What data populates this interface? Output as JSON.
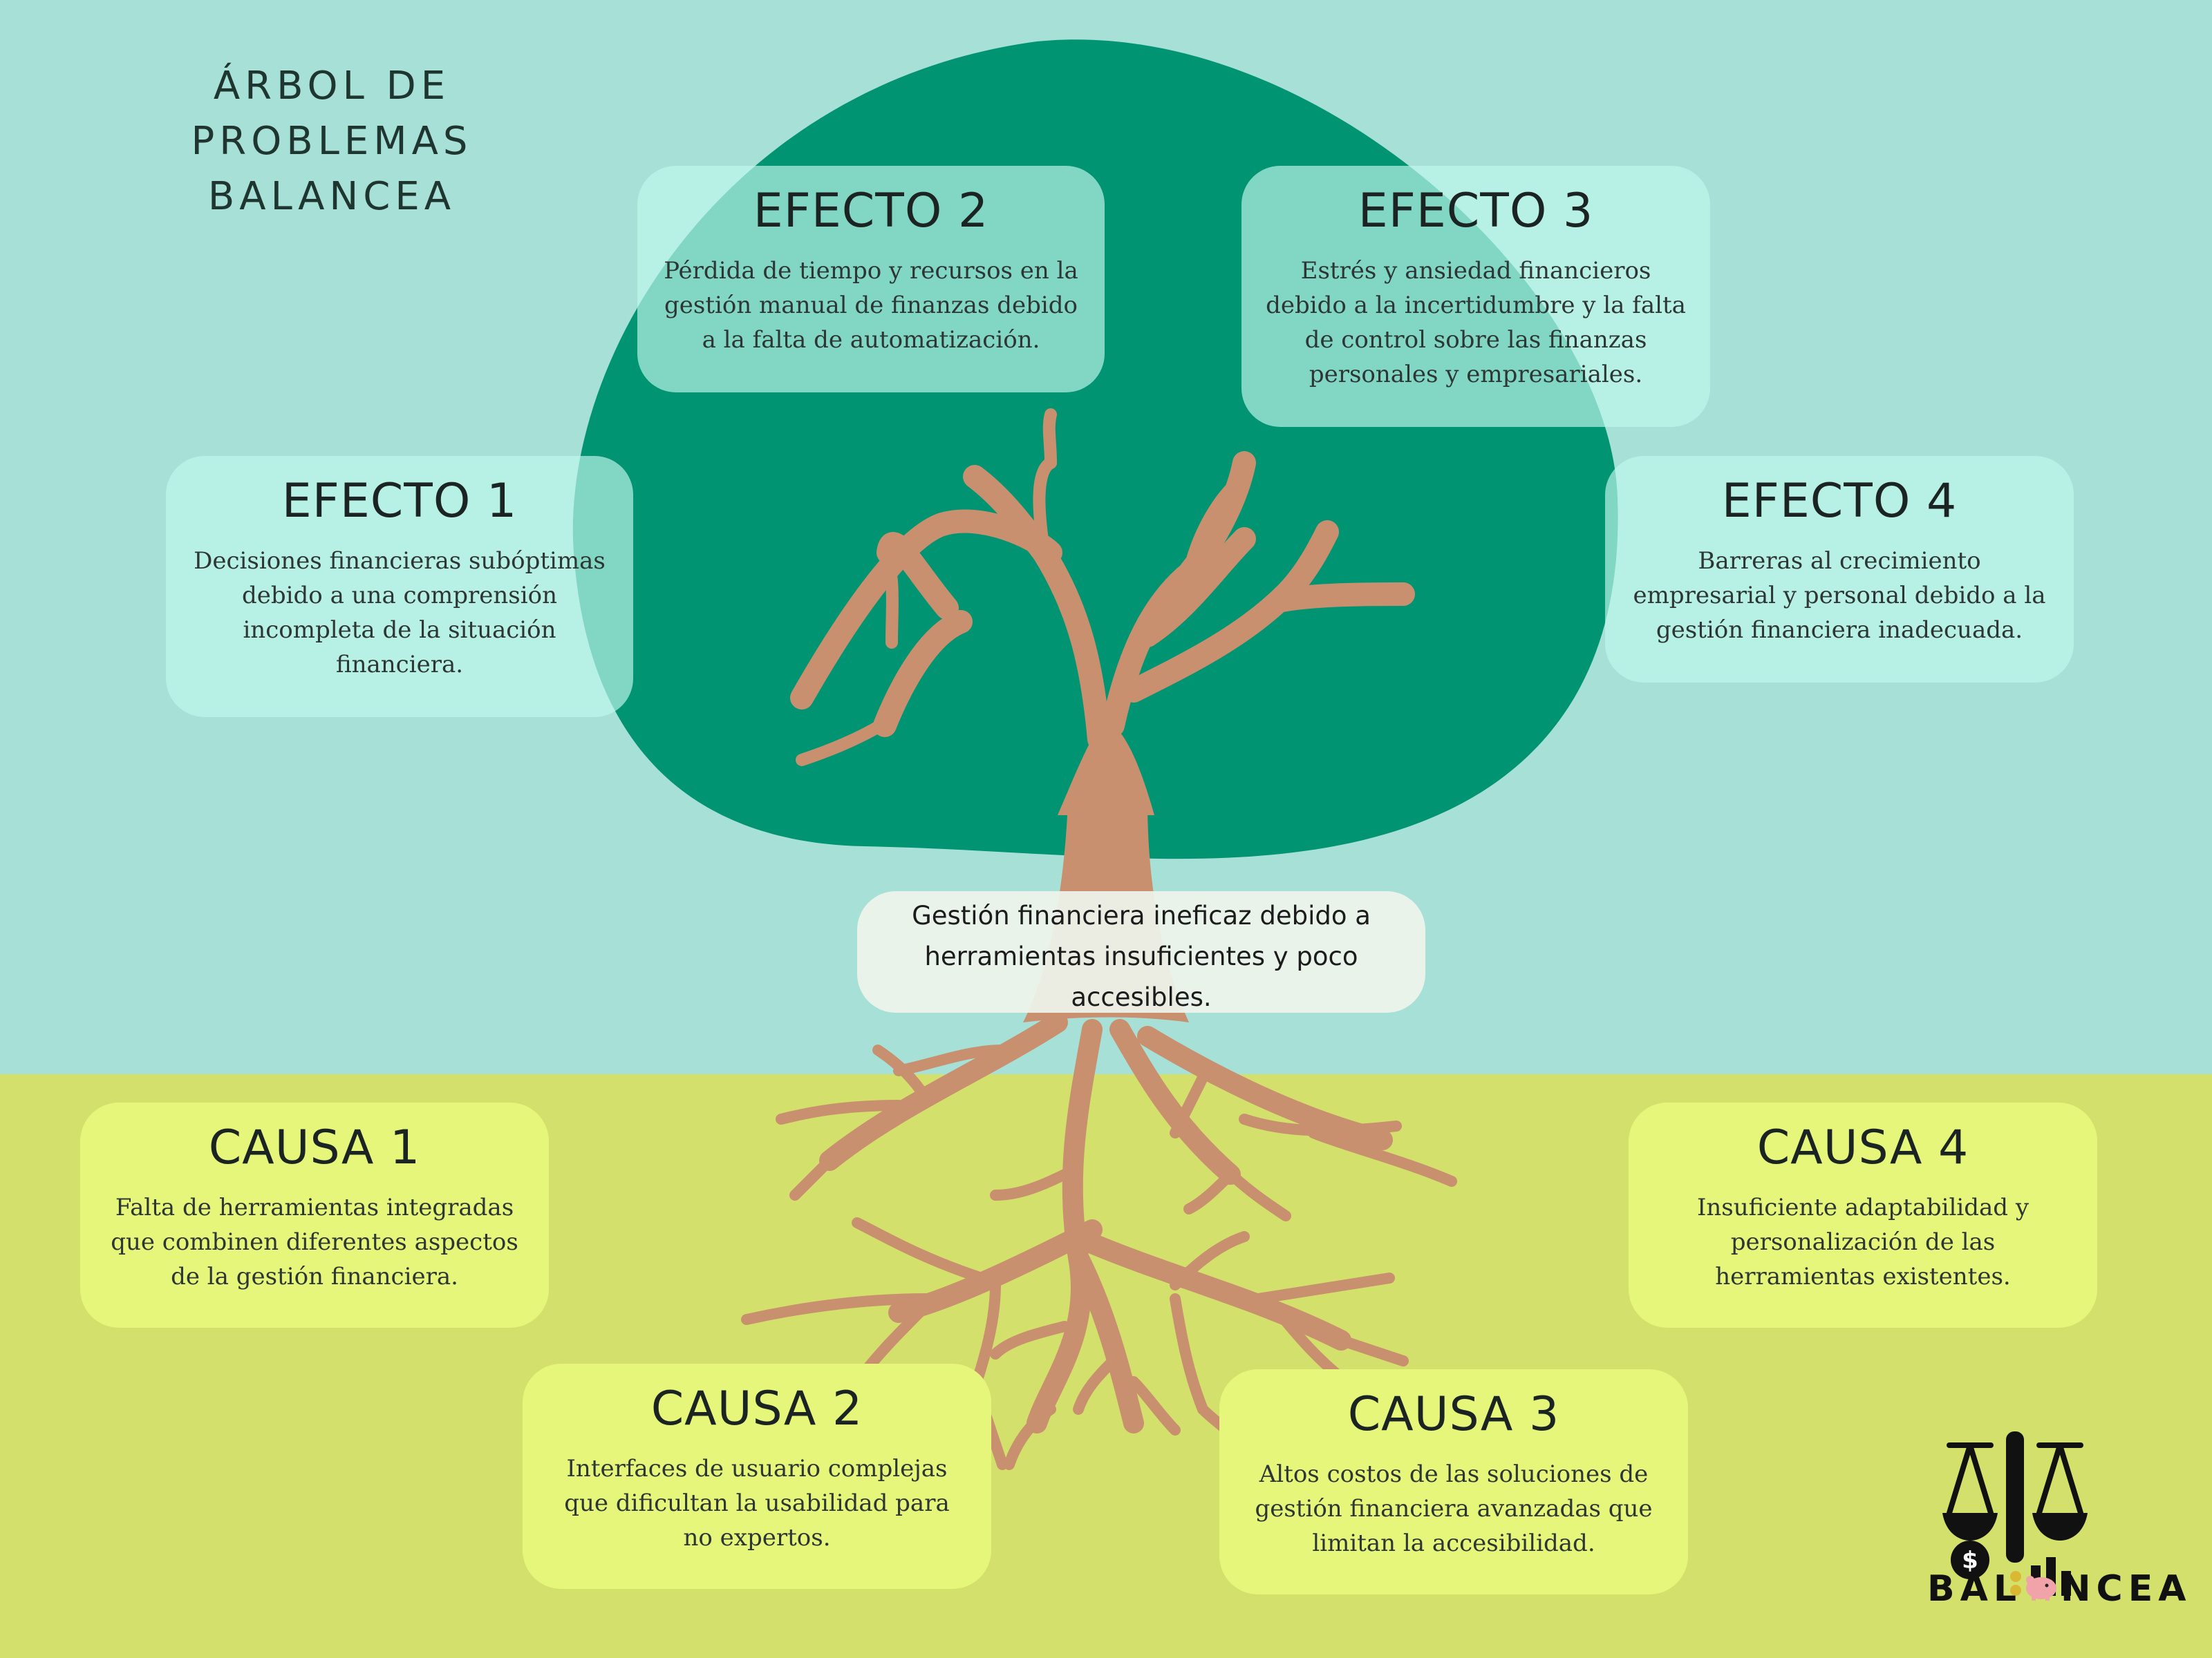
{
  "title": {
    "line1": "ÁRBOL DE PROBLEMAS",
    "line2": "BALANCEA"
  },
  "core_problem": "Gestión financiera ineficaz debido a herramientas insuficientes y poco accesibles.",
  "effects": [
    {
      "title": "EFECTO 1",
      "text": "Decisiones financieras subóptimas debido a una comprensión incompleta de la situación financiera."
    },
    {
      "title": "EFECTO 2",
      "text": "Pérdida de tiempo y recursos en la gestión manual de finanzas debido a la falta de automatización."
    },
    {
      "title": "EFECTO 3",
      "text": "Estrés y ansiedad financieros debido a la incertidumbre y la falta de control sobre las finanzas personales y empresariales."
    },
    {
      "title": "EFECTO 4",
      "text": "Barreras al crecimiento empresarial y personal debido a la gestión financiera inadecuada."
    }
  ],
  "causes": [
    {
      "title": "CAUSA 1",
      "text": "Falta de herramientas integradas que combinen diferentes aspectos de la gestión financiera."
    },
    {
      "title": "CAUSA 2",
      "text": "Interfaces de usuario complejas que dificultan la usabilidad para no expertos."
    },
    {
      "title": "CAUSA 3",
      "text": "Altos costos de las soluciones de gestión financiera avanzadas que limitan la accesibilidad."
    },
    {
      "title": "CAUSA 4",
      "text": "Insuficiente adaptabilidad y personalización de las herramientas existentes."
    }
  ],
  "logo": {
    "text_left": "BAL",
    "text_right": "NCEA"
  },
  "colors": {
    "sky": "#a7e0d7",
    "ground": "#d3e06b",
    "canopy": "#009473",
    "trunk": "#c8906f",
    "effect_card": "#bef8ea",
    "cause_card": "#e5f67a"
  }
}
